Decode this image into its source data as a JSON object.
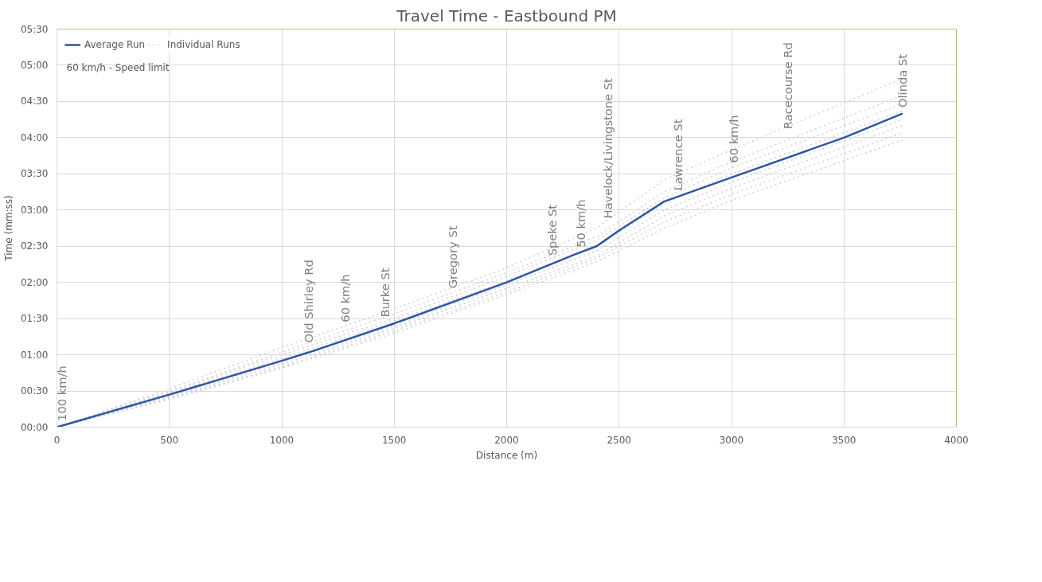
{
  "chart_data": {
    "type": "line",
    "title": "Travel Time - Eastbound PM",
    "xlabel": "Distance (m)",
    "ylabel": "Time (mm:ss)",
    "xlim": [
      0,
      4000
    ],
    "xticks": [
      0,
      500,
      1000,
      1500,
      2000,
      2500,
      3000,
      3500,
      4000
    ],
    "ylim": [
      0,
      330
    ],
    "yticks": [
      {
        "value": 0,
        "label": "00:00"
      },
      {
        "value": 30,
        "label": "00:30"
      },
      {
        "value": 60,
        "label": "01:00"
      },
      {
        "value": 90,
        "label": "01:30"
      },
      {
        "value": 120,
        "label": "02:00"
      },
      {
        "value": 150,
        "label": "02:30"
      },
      {
        "value": 180,
        "label": "03:00"
      },
      {
        "value": 210,
        "label": "03:30"
      },
      {
        "value": 240,
        "label": "04:00"
      },
      {
        "value": 270,
        "label": "04:30"
      },
      {
        "value": 300,
        "label": "05:00"
      },
      {
        "value": 330,
        "label": "05:30"
      }
    ],
    "grid": true,
    "legend": "top left",
    "series": [
      {
        "name": "Average Run",
        "color": "#2f55a4",
        "line_style": "solid",
        "x": [
          0,
          500,
          1000,
          1120,
          1500,
          2000,
          2300,
          2400,
          2500,
          2700,
          3000,
          3500,
          3760
        ],
        "values": [
          0,
          27,
          55,
          62,
          86,
          120,
          143,
          150,
          163,
          187,
          207,
          240,
          260
        ]
      },
      {
        "name": "Individual Runs",
        "color": "#d0d0d0",
        "line_style": "dotted",
        "x": [
          0,
          500,
          1000,
          1500,
          2000,
          2400,
          2700,
          3000,
          3760
        ],
        "values": [
          0,
          32,
          66,
          98,
          132,
          165,
          205,
          230,
          289
        ]
      },
      {
        "color": "#d0d0d0",
        "line_style": "dotted",
        "x": [
          0,
          500,
          1000,
          1500,
          2000,
          2400,
          2700,
          3000,
          3760
        ],
        "values": [
          0,
          30,
          62,
          94,
          128,
          158,
          195,
          220,
          275
        ]
      },
      {
        "color": "#d0d0d0",
        "line_style": "dotted",
        "x": [
          0,
          500,
          1000,
          1500,
          2000,
          2400,
          2700,
          3000,
          3760
        ],
        "values": [
          0,
          29,
          60,
          90,
          125,
          155,
          190,
          215,
          268
        ]
      },
      {
        "color": "#d0d0d0",
        "line_style": "dotted",
        "x": [
          0,
          500,
          1000,
          1500,
          2000,
          2400,
          2700,
          3000,
          3760
        ],
        "values": [
          0,
          28,
          57,
          88,
          121,
          150,
          185,
          210,
          262
        ]
      },
      {
        "color": "#d0d0d0",
        "line_style": "dotted",
        "x": [
          0,
          500,
          1000,
          1500,
          2000,
          2400,
          2700,
          3000,
          3760
        ],
        "values": [
          0,
          26,
          54,
          84,
          118,
          146,
          180,
          203,
          255
        ]
      },
      {
        "color": "#d0d0d0",
        "line_style": "dotted",
        "x": [
          0,
          500,
          1000,
          1500,
          2000,
          2400,
          2700,
          3000,
          3760
        ],
        "values": [
          0,
          25,
          52,
          82,
          115,
          142,
          175,
          198,
          250
        ]
      },
      {
        "color": "#d0d0d0",
        "line_style": "dotted",
        "x": [
          0,
          500,
          1000,
          1500,
          2000,
          2400,
          2700,
          3000,
          3760
        ],
        "values": [
          0,
          24,
          50,
          80,
          112,
          140,
          170,
          193,
          244
        ]
      },
      {
        "color": "#d0d0d0",
        "line_style": "dotted",
        "x": [
          0,
          500,
          1000,
          1500,
          2000,
          2400,
          2700,
          3000,
          3760
        ],
        "values": [
          0,
          23,
          49,
          78,
          110,
          137,
          165,
          188,
          238
        ]
      }
    ],
    "annotations": [
      {
        "text": "100 km/h",
        "x": 20,
        "y": 5
      },
      {
        "text": "Old Shirley Rd",
        "x": 1120,
        "y": 70
      },
      {
        "text": "60 km/h",
        "x": 1280,
        "y": 87
      },
      {
        "text": "Burke St",
        "x": 1460,
        "y": 91
      },
      {
        "text": "Gregory St",
        "x": 1760,
        "y": 115
      },
      {
        "text": "Speke St",
        "x": 2200,
        "y": 142
      },
      {
        "text": "50 km/h",
        "x": 2330,
        "y": 149
      },
      {
        "text": "Havelock/Livingstone St",
        "x": 2450,
        "y": 173
      },
      {
        "text": "Lawrence St",
        "x": 2760,
        "y": 196
      },
      {
        "text": "60 km/h",
        "x": 3010,
        "y": 219
      },
      {
        "text": "Racecourse Rd",
        "x": 3250,
        "y": 247
      },
      {
        "text": "Olinda St",
        "x": 3760,
        "y": 265
      },
      "60 km/h - Speed limit"
    ]
  }
}
